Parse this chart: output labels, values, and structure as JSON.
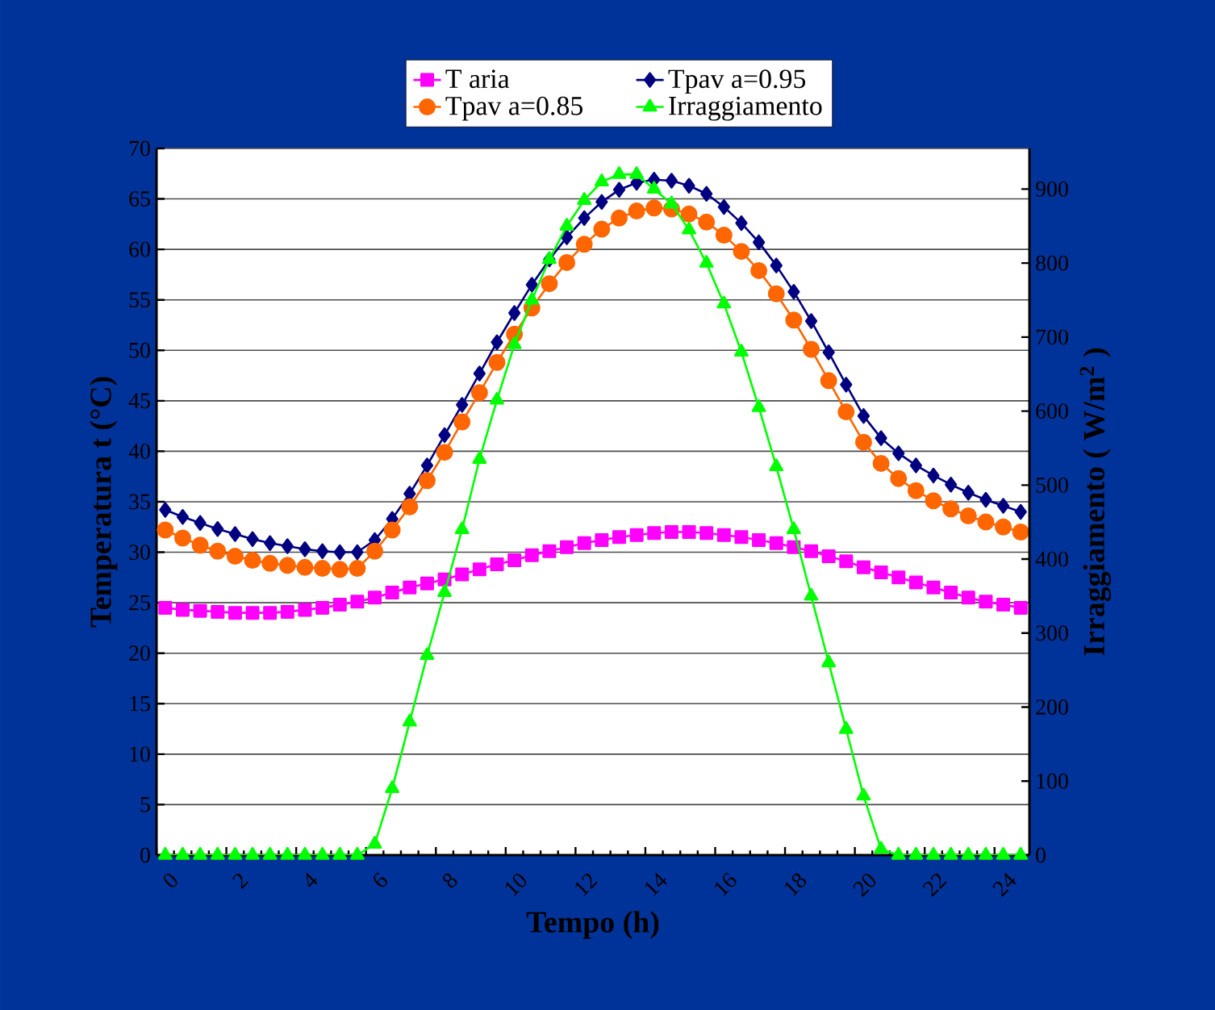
{
  "chart_data": {
    "type": "line",
    "xlabel": "Tempo (h)",
    "ylabel": "Temperatura t (°C)",
    "y2label": "Irraggiamento ( W/m$^{2}$ )",
    "x": [
      0.25,
      0.75,
      1.25,
      1.75,
      2.25,
      2.75,
      3.25,
      3.75,
      4.25,
      4.75,
      5.25,
      5.75,
      6.25,
      6.75,
      7.25,
      7.75,
      8.25,
      8.75,
      9.25,
      9.75,
      10.25,
      10.75,
      11.25,
      11.75,
      12.25,
      12.75,
      13.25,
      13.75,
      14.25,
      14.75,
      15.25,
      15.75,
      16.25,
      16.75,
      17.25,
      17.75,
      18.25,
      18.75,
      19.25,
      19.75,
      20.25,
      20.75,
      21.25,
      21.75,
      22.25,
      22.75,
      23.25,
      23.75,
      24.25,
      24.75
    ],
    "series": [
      {
        "name": "T aria",
        "color": "#ff00ff",
        "marker": "square",
        "values": [
          24.5,
          24.3,
          24.2,
          24.1,
          24.0,
          24.0,
          24.0,
          24.1,
          24.3,
          24.5,
          24.8,
          25.1,
          25.5,
          26.0,
          26.5,
          26.9,
          27.3,
          27.8,
          28.3,
          28.8,
          29.2,
          29.7,
          30.1,
          30.5,
          30.9,
          31.2,
          31.5,
          31.7,
          31.9,
          32.0,
          32.0,
          31.9,
          31.7,
          31.5,
          31.2,
          30.9,
          30.5,
          30.1,
          29.6,
          29.1,
          28.5,
          28.0,
          27.5,
          27.0,
          26.5,
          26.0,
          25.5,
          25.1,
          24.8,
          24.5
        ]
      },
      {
        "name": "Tpav a=0.95",
        "color": "#000080",
        "marker": "diamond",
        "values": [
          34.2,
          33.5,
          32.9,
          32.3,
          31.8,
          31.3,
          30.9,
          30.6,
          30.3,
          30.1,
          30.0,
          30.0,
          31.2,
          33.3,
          35.8,
          38.6,
          41.6,
          44.6,
          47.7,
          50.8,
          53.7,
          56.5,
          59.0,
          61.2,
          63.1,
          64.7,
          65.9,
          66.6,
          66.9,
          66.8,
          66.3,
          65.5,
          64.2,
          62.6,
          60.7,
          58.4,
          55.8,
          52.9,
          49.8,
          46.6,
          43.5,
          41.3,
          39.8,
          38.6,
          37.6,
          36.7,
          35.9,
          35.2,
          34.6,
          34.0
        ]
      },
      {
        "name": "Tpav a=0.85",
        "color": "#ff6600",
        "marker": "circle",
        "values": [
          32.2,
          31.4,
          30.7,
          30.1,
          29.6,
          29.2,
          28.9,
          28.7,
          28.5,
          28.4,
          28.3,
          28.4,
          30.1,
          32.2,
          34.5,
          37.1,
          39.9,
          42.9,
          45.8,
          48.8,
          51.6,
          54.2,
          56.6,
          58.7,
          60.5,
          62.0,
          63.1,
          63.8,
          64.1,
          64.0,
          63.5,
          62.7,
          61.4,
          59.8,
          57.9,
          55.6,
          53.0,
          50.1,
          47.0,
          43.9,
          40.9,
          38.8,
          37.3,
          36.1,
          35.1,
          34.3,
          33.6,
          33.0,
          32.5,
          32.0
        ]
      },
      {
        "name": "Irraggiamento",
        "color": "#00ff00",
        "marker": "triangle",
        "axis": "y2",
        "values": [
          0,
          0,
          0,
          0,
          0,
          0,
          0,
          0,
          0,
          0,
          0,
          0,
          15,
          90,
          180,
          270,
          355,
          440,
          535,
          615,
          690,
          750,
          805,
          850,
          885,
          910,
          920,
          920,
          900,
          880,
          845,
          800,
          745,
          680,
          605,
          525,
          440,
          350,
          260,
          170,
          80,
          8,
          0,
          0,
          0,
          0,
          0,
          0,
          0,
          0
        ]
      }
    ],
    "xlim": [
      0,
      25
    ],
    "xticks": [
      0,
      2,
      4,
      6,
      8,
      10,
      12,
      14,
      16,
      18,
      20,
      22,
      24
    ],
    "ylim": [
      0,
      70
    ],
    "yticks": [
      0,
      5,
      10,
      15,
      20,
      25,
      30,
      35,
      40,
      45,
      50,
      55,
      60,
      65,
      70
    ],
    "y2lim": [
      0,
      955
    ],
    "y2ticks": [
      0,
      100,
      200,
      300,
      400,
      500,
      600,
      700,
      800,
      900
    ],
    "grid": "y",
    "legend": "top",
    "line_style": "solid"
  }
}
